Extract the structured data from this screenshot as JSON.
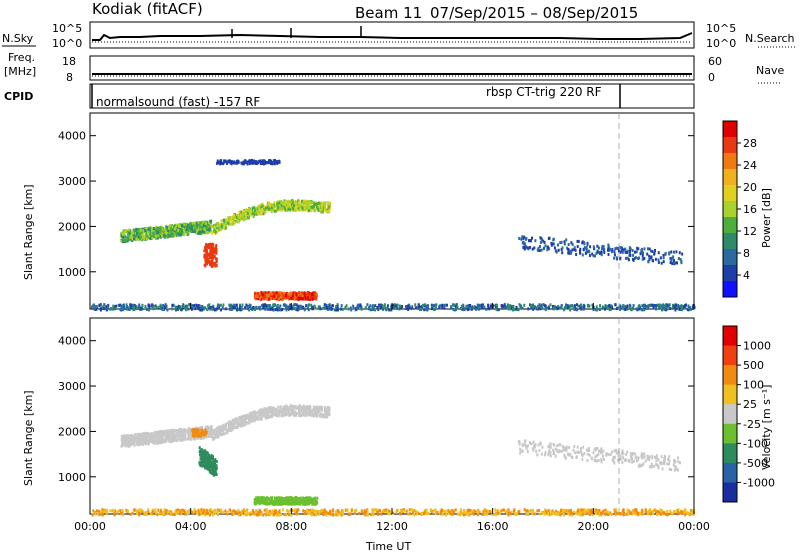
{
  "header": {
    "station": "Kodiak  (fitACF)",
    "beam": "Beam 11",
    "dates": "07/Sep/2015 – 08/Sep/2015"
  },
  "nsky": {
    "label": "N.Sky",
    "ticks_left": [
      "10^5",
      "10^0"
    ],
    "ticks_right": [
      "10^5",
      "10^0"
    ],
    "right_label": "N.Search"
  },
  "freq": {
    "label_line1": "Freq.",
    "label_line2": "[MHz]",
    "ticks_left": [
      "18",
      "8"
    ],
    "ticks_right": [
      "60",
      "0"
    ],
    "right_label": "Nave"
  },
  "cpid": {
    "label": "CPID",
    "mode1": "normalsound (fast) -157 RF",
    "mode2": "rbsp CT-trig 220 RF"
  },
  "chart_data": [
    {
      "type": "heatmap",
      "ylabel": "Slant Range [km]",
      "yticks": [
        "1000",
        "2000",
        "3000",
        "4000"
      ],
      "ylim": [
        180,
        4500
      ],
      "xlim": [
        0,
        24
      ],
      "colorbar": {
        "label": "Power [dB]",
        "ticks": [
          "4",
          "8",
          "12",
          "16",
          "20",
          "24",
          "28"
        ],
        "colors": [
          "#1010ff",
          "#1e3ea8",
          "#2a6aa0",
          "#2f8a6a",
          "#4cae3c",
          "#a8d22e",
          "#e0d020",
          "#f0b020",
          "#f07a10",
          "#e83a10",
          "#e00000"
        ]
      }
    },
    {
      "type": "heatmap",
      "ylabel": "Slant Range [km]",
      "yticks": [
        "1000",
        "2000",
        "3000",
        "4000"
      ],
      "ylim": [
        180,
        4500
      ],
      "xlim": [
        0,
        24
      ],
      "colorbar": {
        "label": "Velocity [m s⁻¹]",
        "ticks": [
          "1000",
          "500",
          "100",
          "25",
          "-25",
          "-100",
          "-500",
          "-1000"
        ],
        "colors": [
          "#1a2ea0",
          "#2a62a8",
          "#2e8c5c",
          "#6cc030",
          "#c8c8c8",
          "#f0c020",
          "#f08a10",
          "#f04010",
          "#e00000"
        ]
      }
    }
  ],
  "x_axis": {
    "ticks": [
      "00:00",
      "04:00",
      "08:00",
      "12:00",
      "16:00",
      "20:00",
      "00:00"
    ],
    "label": "Time UT"
  }
}
